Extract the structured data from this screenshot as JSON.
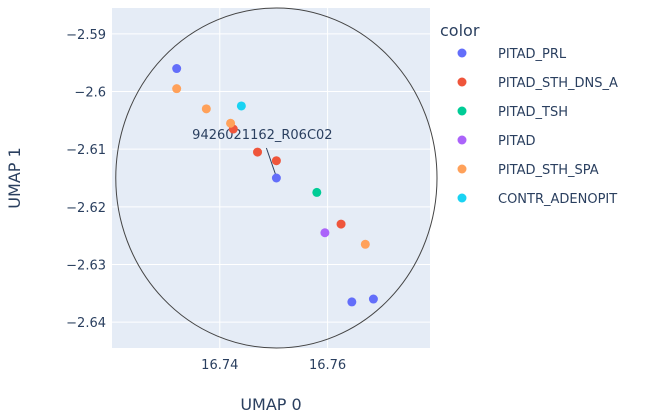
{
  "chart_data": {
    "type": "scatter",
    "xlabel": "UMAP 0",
    "ylabel": "UMAP 1",
    "xlim": [
      16.72,
      16.779
    ],
    "ylim": [
      -2.6445,
      -2.5855
    ],
    "xticks": [
      {
        "v": 16.74,
        "label": "16.74"
      },
      {
        "v": 16.76,
        "label": "16.76"
      }
    ],
    "yticks": [
      {
        "v": -2.59,
        "label": "−2.59"
      },
      {
        "v": -2.6,
        "label": "−2.6"
      },
      {
        "v": -2.61,
        "label": "−2.61"
      },
      {
        "v": -2.62,
        "label": "−2.62"
      },
      {
        "v": -2.63,
        "label": "−2.63"
      },
      {
        "v": -2.64,
        "label": "−2.64"
      }
    ],
    "grid": true,
    "legend": {
      "title": "color",
      "placement": "right"
    },
    "series": [
      {
        "name": "PITAD_PRL",
        "color": "#636efa",
        "points": [
          [
            16.732,
            -2.596
          ],
          [
            16.7505,
            -2.615
          ],
          [
            16.7645,
            -2.6365
          ],
          [
            16.7685,
            -2.636
          ]
        ]
      },
      {
        "name": "PITAD_STH_DNS_A",
        "color": "#ef553b",
        "points": [
          [
            16.7425,
            -2.6065
          ],
          [
            16.747,
            -2.6105
          ],
          [
            16.7505,
            -2.612
          ],
          [
            16.7625,
            -2.623
          ]
        ]
      },
      {
        "name": "PITAD_TSH",
        "color": "#00cc96",
        "points": [
          [
            16.758,
            -2.6175
          ]
        ]
      },
      {
        "name": "PITAD",
        "color": "#ab63fa",
        "points": [
          [
            16.7595,
            -2.6245
          ]
        ]
      },
      {
        "name": "PITAD_STH_SPA",
        "color": "#ffa15a",
        "points": [
          [
            16.732,
            -2.5995
          ],
          [
            16.7375,
            -2.603
          ],
          [
            16.742,
            -2.6055
          ],
          [
            16.767,
            -2.6265
          ]
        ]
      },
      {
        "name": "CONTR_ADENOPIT",
        "color": "#19d3f3",
        "points": [
          [
            16.744,
            -2.6025
          ]
        ]
      }
    ],
    "annotation": {
      "text": "9426021162_R06C02",
      "x": 16.7505,
      "y": -2.615
    },
    "ellipse": {
      "cx": 16.7505,
      "cy": -2.615,
      "rx": 0.0298,
      "ry": 0.0295
    }
  }
}
